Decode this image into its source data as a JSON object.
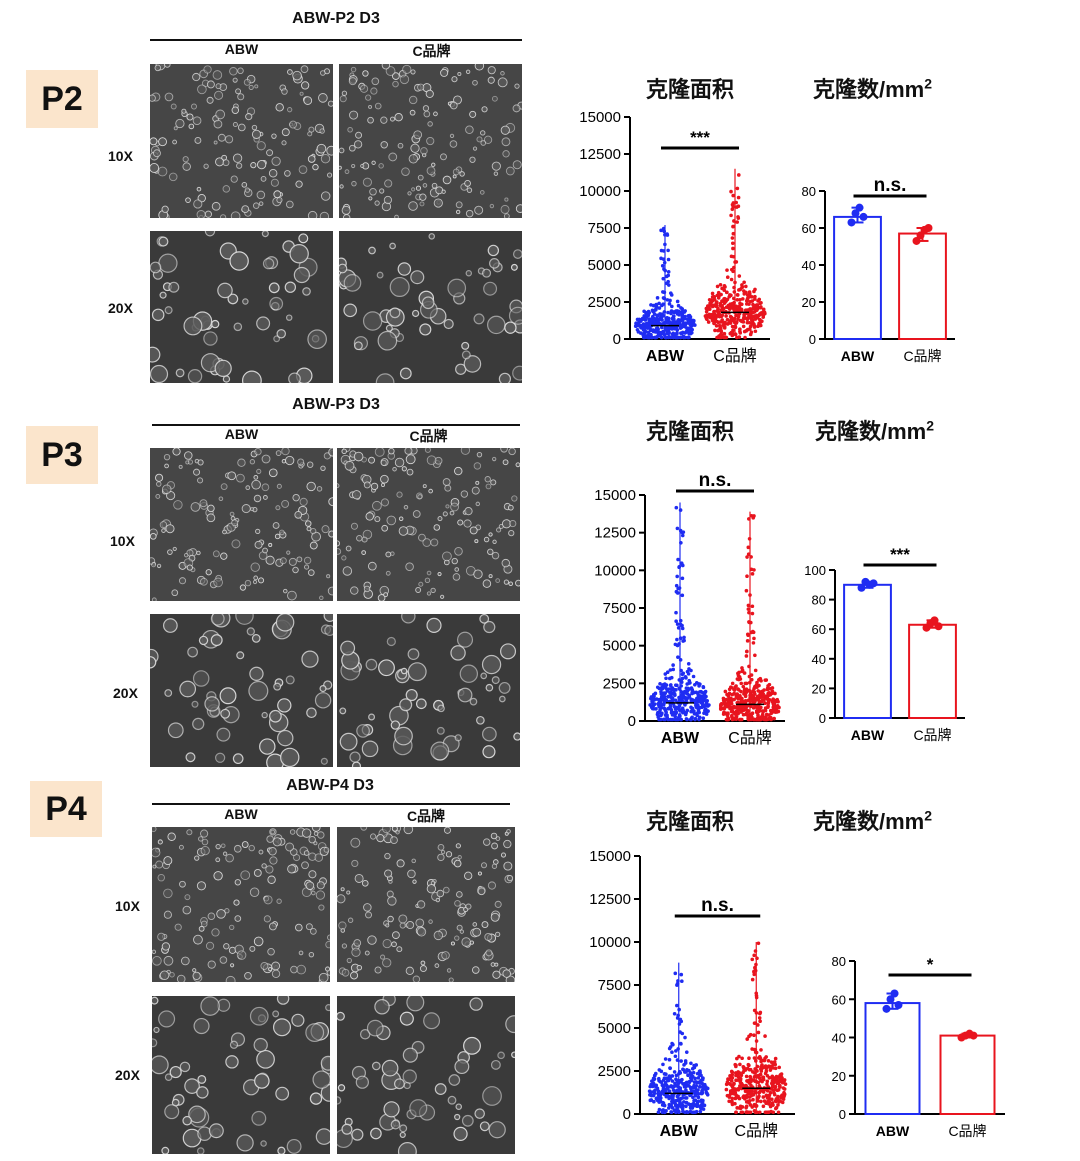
{
  "colors": {
    "abw": "#1f2cf2",
    "c": "#e8141e",
    "label_bg": "#fbe5cc"
  },
  "panels": [
    {
      "label": "P2",
      "title": "ABW-P2  D3",
      "col_abw": "ABW",
      "col_c": "C品牌",
      "mag_10x": "10X",
      "mag_20x": "20X",
      "chart_area_title": "克隆面积",
      "chart_count_title": "克隆数/mm",
      "chart_count_sup": "2"
    },
    {
      "label": "P3",
      "title": "ABW-P3  D3",
      "col_abw": "ABW",
      "col_c": "C品牌",
      "mag_10x": "10X",
      "mag_20x": "20X",
      "chart_area_title": "克隆面积",
      "chart_count_title": "克隆数/mm",
      "chart_count_sup": "2"
    },
    {
      "label": "P4",
      "title": "ABW-P4  D3",
      "col_abw": "ABW",
      "col_c": "C品牌",
      "mag_10x": "10X",
      "mag_20x": "20X",
      "chart_area_title": "克隆面积",
      "chart_count_title": "克隆数/mm",
      "chart_count_sup": "2"
    }
  ],
  "chart_data": [
    {
      "type": "scatter",
      "subtype": "violin-dot",
      "panel": "P2",
      "title": "克隆面积",
      "categories": [
        "ABW",
        "C品牌"
      ],
      "y_ticks": [
        "0",
        "2500",
        "5000",
        "7500",
        "10000",
        "12500",
        "15000"
      ],
      "ylim": [
        0,
        15000
      ],
      "series": [
        {
          "name": "ABW",
          "max": 7700,
          "median": 900,
          "spread": 1000
        },
        {
          "name": "C品牌",
          "max": 11500,
          "median": 1800,
          "spread": 1400
        }
      ],
      "significance": "***"
    },
    {
      "type": "bar",
      "panel": "P2",
      "title": "克隆数/mm2",
      "categories": [
        "ABW",
        "C品牌"
      ],
      "y_ticks": [
        "0",
        "20",
        "40",
        "60",
        "80"
      ],
      "ylim": [
        0,
        80
      ],
      "values": [
        66,
        57
      ],
      "points": [
        [
          63,
          68,
          71,
          66
        ],
        [
          53,
          56,
          59,
          60
        ]
      ],
      "significance": "n.s."
    },
    {
      "type": "scatter",
      "subtype": "violin-dot",
      "panel": "P3",
      "title": "克隆面积",
      "categories": [
        "ABW",
        "C品牌"
      ],
      "y_ticks": [
        "0",
        "2500",
        "5000",
        "7500",
        "10000",
        "12500",
        "15000"
      ],
      "ylim": [
        0,
        15000
      ],
      "series": [
        {
          "name": "ABW",
          "max": 14500,
          "median": 1200,
          "spread": 1300
        },
        {
          "name": "C品牌",
          "max": 13900,
          "median": 1100,
          "spread": 1200
        }
      ],
      "significance": "n.s."
    },
    {
      "type": "bar",
      "panel": "P3",
      "title": "克隆数/mm2",
      "categories": [
        "ABW",
        "C品牌"
      ],
      "y_ticks": [
        "0",
        "20",
        "40",
        "60",
        "80",
        "100"
      ],
      "ylim": [
        0,
        100
      ],
      "values": [
        90,
        63
      ],
      "points": [
        [
          88,
          92,
          90,
          91
        ],
        [
          61,
          64,
          66,
          62
        ]
      ],
      "significance": "***"
    },
    {
      "type": "scatter",
      "subtype": "violin-dot",
      "panel": "P4",
      "title": "克隆面积",
      "categories": [
        "ABW",
        "C品牌"
      ],
      "y_ticks": [
        "0",
        "2500",
        "5000",
        "7500",
        "10000",
        "12500",
        "15000"
      ],
      "ylim": [
        0,
        15000
      ],
      "series": [
        {
          "name": "ABW",
          "max": 8800,
          "median": 1200,
          "spread": 1300
        },
        {
          "name": "C品牌",
          "max": 10000,
          "median": 1500,
          "spread": 1500
        }
      ],
      "significance": "n.s."
    },
    {
      "type": "bar",
      "panel": "P4",
      "title": "克隆数/mm2",
      "categories": [
        "ABW",
        "C品牌"
      ],
      "y_ticks": [
        "0",
        "20",
        "40",
        "60",
        "80"
      ],
      "ylim": [
        0,
        80
      ],
      "values": [
        58,
        41
      ],
      "points": [
        [
          55,
          60,
          63,
          57
        ],
        [
          40,
          41,
          42,
          41
        ]
      ],
      "significance": "*"
    }
  ]
}
